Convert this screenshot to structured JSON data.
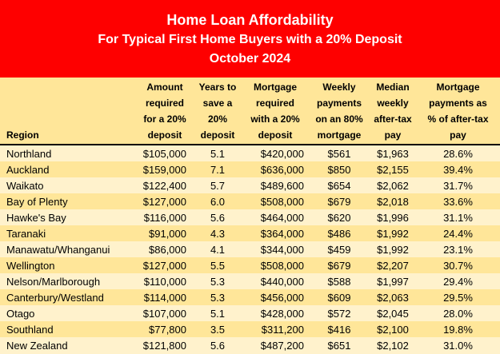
{
  "title": {
    "line1": "Home Loan Affordability",
    "line2": "For Typical First Home Buyers with a 20% Deposit",
    "line3": "October 2024"
  },
  "chart_data": {
    "type": "table",
    "title": "Home Loan Affordability",
    "subtitle": "For Typical First Home Buyers with a 20% Deposit",
    "period": "October 2024",
    "columns": [
      {
        "key": "region",
        "label": "Region"
      },
      {
        "key": "amount",
        "label": "Amount\nrequired\nfor a 20%\ndeposit"
      },
      {
        "key": "years",
        "label": "Years to\nsave a\n20%\ndeposit"
      },
      {
        "key": "mortgage",
        "label": "Mortgage\nrequired\nwith a 20%\ndeposit"
      },
      {
        "key": "weekly",
        "label": "Weekly\npayments\non an 80%\nmortgage"
      },
      {
        "key": "median",
        "label": "Median\nweekly\nafter-tax\npay"
      },
      {
        "key": "percent",
        "label": "Mortgage\npayments as\n% of after-tax\npay"
      }
    ],
    "rows": [
      {
        "region": "Northland",
        "amount": "$105,000",
        "years": "5.1",
        "mortgage": "$420,000",
        "weekly": "$561",
        "median": "$1,963",
        "percent": "28.6%"
      },
      {
        "region": "Auckland",
        "amount": "$159,000",
        "years": "7.1",
        "mortgage": "$636,000",
        "weekly": "$850",
        "median": "$2,155",
        "percent": "39.4%"
      },
      {
        "region": "Waikato",
        "amount": "$122,400",
        "years": "5.7",
        "mortgage": "$489,600",
        "weekly": "$654",
        "median": "$2,062",
        "percent": "31.7%"
      },
      {
        "region": "Bay of Plenty",
        "amount": "$127,000",
        "years": "6.0",
        "mortgage": "$508,000",
        "weekly": "$679",
        "median": "$2,018",
        "percent": "33.6%"
      },
      {
        "region": "Hawke's Bay",
        "amount": "$116,000",
        "years": "5.6",
        "mortgage": "$464,000",
        "weekly": "$620",
        "median": "$1,996",
        "percent": "31.1%"
      },
      {
        "region": "Taranaki",
        "amount": "$91,000",
        "years": "4.3",
        "mortgage": "$364,000",
        "weekly": "$486",
        "median": "$1,992",
        "percent": "24.4%"
      },
      {
        "region": "Manawatu/Whanganui",
        "amount": "$86,000",
        "years": "4.1",
        "mortgage": "$344,000",
        "weekly": "$459",
        "median": "$1,992",
        "percent": "23.1%"
      },
      {
        "region": "Wellington",
        "amount": "$127,000",
        "years": "5.5",
        "mortgage": "$508,000",
        "weekly": "$679",
        "median": "$2,207",
        "percent": "30.7%"
      },
      {
        "region": "Nelson/Marlborough",
        "amount": "$110,000",
        "years": "5.3",
        "mortgage": "$440,000",
        "weekly": "$588",
        "median": "$1,997",
        "percent": "29.4%"
      },
      {
        "region": "Canterbury/Westland",
        "amount": "$114,000",
        "years": "5.3",
        "mortgage": "$456,000",
        "weekly": "$609",
        "median": "$2,063",
        "percent": "29.5%"
      },
      {
        "region": "Otago",
        "amount": "$107,000",
        "years": "5.1",
        "mortgage": "$428,000",
        "weekly": "$572",
        "median": "$2,045",
        "percent": "28.0%"
      },
      {
        "region": "Southland",
        "amount": "$77,800",
        "years": "3.5",
        "mortgage": "$311,200",
        "weekly": "$416",
        "median": "$2,100",
        "percent": "19.8%"
      },
      {
        "region": "New Zealand",
        "amount": "$121,800",
        "years": "5.6",
        "mortgage": "$487,200",
        "weekly": "$651",
        "median": "$2,102",
        "percent": "31.0%"
      }
    ]
  },
  "colors": {
    "title_background": "#FE0000",
    "title_text": "#FFFFFF",
    "header_background": "#FFE699",
    "row_light": "#FFF2CC",
    "row_gold": "#FFE699",
    "header_divider": "#000000",
    "body_text": "#000000"
  }
}
